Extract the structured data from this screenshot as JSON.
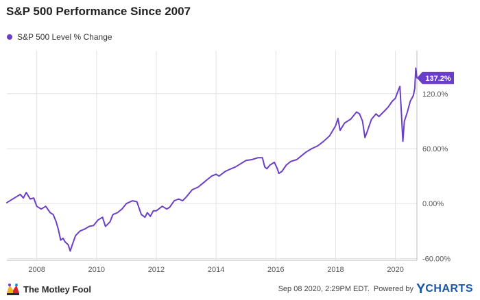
{
  "header": {
    "title": "S&P 500 Performance Since 2007"
  },
  "footer": {
    "source_brand": "The Motley Fool",
    "timestamp": "Sep 08 2020, 2:29PM EDT.",
    "powered_by": "Powered by",
    "ycharts_y": "Y",
    "ycharts_rest": "CHARTS"
  },
  "colors": {
    "series": "#6a3ec6",
    "grid": "#e3e3e3",
    "axis_text": "#555555"
  },
  "chart_data": {
    "type": "line",
    "title": "S&P 500 Performance Since 2007",
    "xlabel": "",
    "ylabel": "",
    "x_domain": [
      2007.0,
      2020.72
    ],
    "ylim": [
      -62,
      167
    ],
    "grid": true,
    "legend": "top-left",
    "x_ticks": [
      2008,
      2010,
      2012,
      2014,
      2016,
      2018,
      2020
    ],
    "x_tick_labels": [
      "2008",
      "2010",
      "2012",
      "2014",
      "2016",
      "2018",
      "2020"
    ],
    "y_ticks": [
      -60,
      0,
      60,
      120
    ],
    "y_tick_labels": [
      "-60.00%",
      "0.00%",
      "60.00%",
      "120.0%"
    ],
    "last_value_label": "137.2%",
    "series": [
      {
        "name": "S&P 500 Level % Change",
        "x": [
          2007.0,
          2007.15,
          2007.3,
          2007.45,
          2007.55,
          2007.65,
          2007.78,
          2007.9,
          2008.0,
          2008.15,
          2008.3,
          2008.45,
          2008.55,
          2008.65,
          2008.72,
          2008.8,
          2008.88,
          2008.95,
          2009.05,
          2009.12,
          2009.2,
          2009.3,
          2009.45,
          2009.6,
          2009.75,
          2009.9,
          2010.05,
          2010.2,
          2010.3,
          2010.45,
          2010.55,
          2010.7,
          2010.85,
          2011.0,
          2011.2,
          2011.35,
          2011.5,
          2011.62,
          2011.7,
          2011.8,
          2011.9,
          2012.0,
          2012.2,
          2012.35,
          2012.45,
          2012.6,
          2012.75,
          2012.88,
          2013.0,
          2013.2,
          2013.4,
          2013.55,
          2013.7,
          2013.85,
          2014.0,
          2014.1,
          2014.3,
          2014.5,
          2014.65,
          2014.8,
          2014.9,
          2015.0,
          2015.2,
          2015.4,
          2015.55,
          2015.63,
          2015.7,
          2015.8,
          2015.95,
          2016.05,
          2016.1,
          2016.2,
          2016.35,
          2016.5,
          2016.7,
          2016.85,
          2017.0,
          2017.2,
          2017.4,
          2017.6,
          2017.8,
          2018.0,
          2018.08,
          2018.15,
          2018.3,
          2018.5,
          2018.7,
          2018.8,
          2018.9,
          2018.98,
          2019.05,
          2019.2,
          2019.35,
          2019.45,
          2019.6,
          2019.75,
          2019.9,
          2020.0,
          2020.1,
          2020.15,
          2020.2,
          2020.25,
          2020.3,
          2020.4,
          2020.5,
          2020.6,
          2020.65,
          2020.68,
          2020.72
        ],
        "values": [
          1,
          4,
          7,
          10,
          6,
          12,
          5,
          6,
          -3,
          -6,
          -3,
          -10,
          -12,
          -20,
          -28,
          -40,
          -38,
          -42,
          -45,
          -52,
          -44,
          -35,
          -30,
          -28,
          -25,
          -24,
          -18,
          -15,
          -25,
          -20,
          -12,
          -10,
          -6,
          0,
          3,
          2,
          -12,
          -15,
          -10,
          -14,
          -8,
          -8,
          -3,
          -6,
          -4,
          3,
          5,
          3,
          7,
          15,
          18,
          22,
          26,
          30,
          32,
          30,
          35,
          38,
          40,
          43,
          45,
          47,
          48,
          50,
          50,
          40,
          38,
          42,
          45,
          38,
          33,
          35,
          42,
          46,
          48,
          52,
          56,
          60,
          63,
          68,
          74,
          85,
          93,
          80,
          88,
          92,
          100,
          98,
          90,
          72,
          78,
          92,
          98,
          95,
          100,
          105,
          112,
          115,
          124,
          128,
          100,
          68,
          90,
          100,
          112,
          118,
          126,
          148,
          137.2
        ]
      }
    ]
  }
}
